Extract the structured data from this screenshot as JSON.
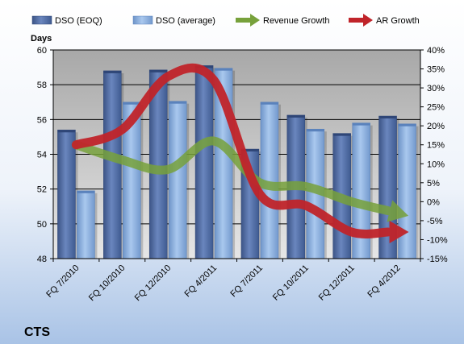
{
  "chart_data": {
    "type": "bar",
    "company": "CTS",
    "ylabel": "Days",
    "categories": [
      "FQ 7/2010",
      "FQ 10/2010",
      "FQ 12/2010",
      "FQ 4/2011",
      "FQ 7/2011",
      "FQ 10/2011",
      "FQ 12/2011",
      "FQ 4/2012"
    ],
    "ylim": [
      48,
      60
    ],
    "yticks": [
      "48",
      "50",
      "52",
      "54",
      "56",
      "58",
      "60"
    ],
    "y2lim": [
      -15,
      40
    ],
    "y2ticks": [
      "-15%",
      "-10%",
      "-5%",
      "0%",
      "5%",
      "10%",
      "15%",
      "20%",
      "25%",
      "30%",
      "35%",
      "40%"
    ],
    "legend_position": "top",
    "series": [
      {
        "name": "DSO (EOQ)",
        "kind": "bar",
        "axis": "left",
        "color": "#4F6DA8",
        "values": [
          55.4,
          58.8,
          58.85,
          59.1,
          54.3,
          56.25,
          55.2,
          56.2
        ]
      },
      {
        "name": "DSO (average)",
        "kind": "bar",
        "axis": "left",
        "color": "#8EB4E3",
        "values": [
          51.9,
          57.0,
          57.05,
          58.95,
          57.0,
          55.45,
          55.8,
          55.75
        ]
      },
      {
        "name": "Revenue Growth",
        "kind": "arrow-line",
        "axis": "right",
        "color": "#77A13B",
        "values": [
          15,
          11,
          8.5,
          16,
          5,
          4,
          0,
          -3
        ]
      },
      {
        "name": "AR Growth",
        "kind": "arrow-line",
        "axis": "right",
        "color": "#C0242A",
        "values": [
          15,
          19,
          33,
          32,
          2,
          -1,
          -8,
          -8
        ]
      }
    ]
  }
}
